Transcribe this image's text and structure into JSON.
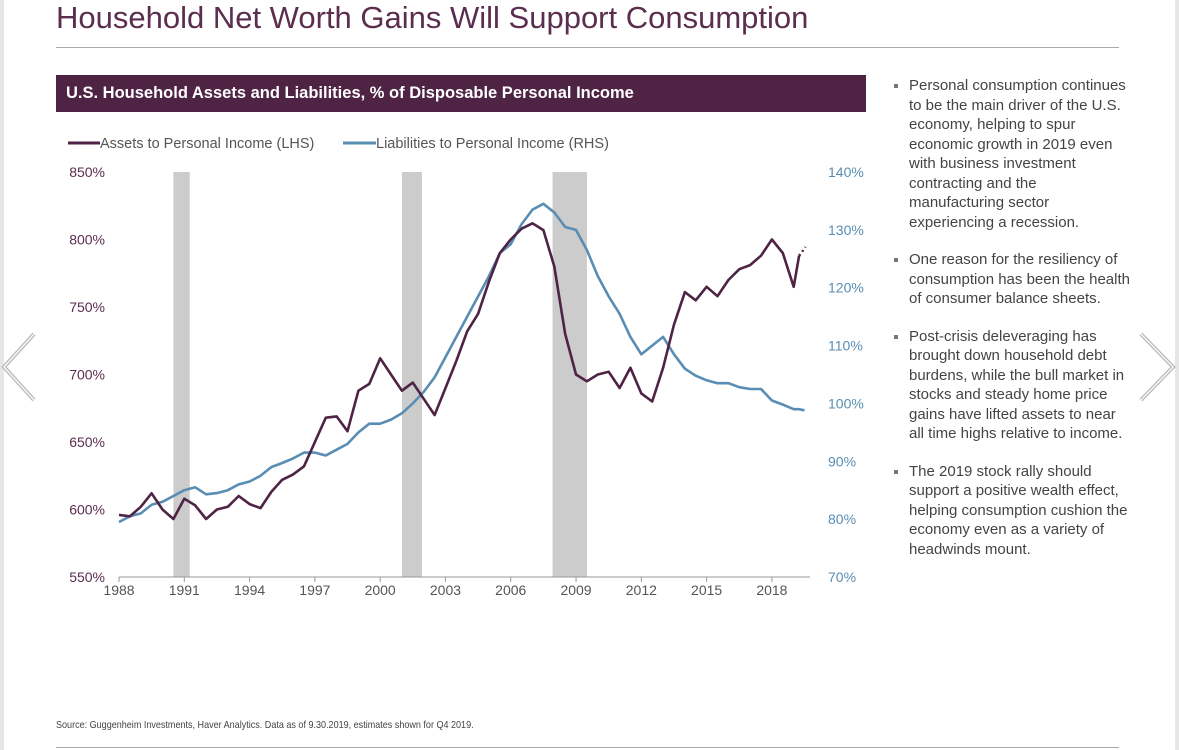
{
  "title": "Household Net Worth Gains Will Support Consumption",
  "colors": {
    "assets": "#4e2344",
    "liabilities": "#5a8db3",
    "recession": "#cccccc",
    "header_bg": "#4e2344",
    "title": "#5b2d4f"
  },
  "bullets": [
    "Personal consumption continues to be the main driver of the U.S. economy, helping to spur economic growth in 2019 even with business investment contracting and the manufacturing sector experiencing a recession.",
    "One reason for the resiliency of consumption has been the health of consumer balance sheets.",
    "Post-crisis deleveraging has brought down household debt burdens, while the bull market in stocks and steady home price gains have lifted assets to near all time highs relative to income.",
    "The 2019 stock rally should support a positive wealth effect, helping consumption cushion the economy even as a variety of headwinds mount."
  ],
  "source": "Source: Guggenheim Investments, Haver Analytics. Data as of 9.30.2019, estimates shown for Q4 2019.",
  "nav": {
    "prev": "chevron-left-icon",
    "next": "chevron-right-icon"
  },
  "chart_data": {
    "type": "line",
    "title": "U.S. Household Assets and Liabilities, % of Disposable Personal Income",
    "x_ticks": [
      1988,
      1991,
      1994,
      1997,
      2000,
      2003,
      2006,
      2009,
      2012,
      2015,
      2018
    ],
    "xlim": [
      1988,
      2019.75
    ],
    "left_axis": {
      "ylim": [
        550,
        850
      ],
      "ticks": [
        "550%",
        "600%",
        "650%",
        "700%",
        "750%",
        "800%",
        "850%"
      ]
    },
    "right_axis": {
      "ylim": [
        70,
        140
      ],
      "ticks": [
        "70%",
        "80%",
        "90%",
        "100%",
        "110%",
        "120%",
        "130%",
        "140%"
      ]
    },
    "legend": "top-left",
    "recessions": [
      [
        1990.5,
        1991.25
      ],
      [
        2001.0,
        2001.92
      ],
      [
        2007.92,
        2009.5
      ]
    ],
    "series": [
      {
        "name": "Assets to Personal Income (LHS)",
        "axis": "left",
        "x": [
          1988,
          1988.5,
          1989,
          1989.5,
          1990,
          1990.5,
          1991,
          1991.5,
          1992,
          1992.5,
          1993,
          1993.5,
          1994,
          1994.5,
          1995,
          1995.5,
          1996,
          1996.5,
          1997,
          1997.5,
          1998,
          1998.5,
          1999,
          1999.5,
          2000,
          2000.5,
          2001,
          2001.5,
          2002,
          2002.5,
          2003,
          2003.5,
          2004,
          2004.5,
          2005,
          2005.5,
          2006,
          2006.5,
          2007,
          2007.5,
          2008,
          2008.5,
          2009,
          2009.5,
          2010,
          2010.5,
          2011,
          2011.5,
          2012,
          2012.5,
          2013,
          2013.5,
          2014,
          2014.5,
          2015,
          2015.5,
          2016,
          2016.5,
          2017,
          2017.5,
          2018,
          2018.5,
          2019,
          2019.25,
          2019.5
        ],
        "y": [
          596,
          595,
          602,
          612,
          600,
          593,
          608,
          603,
          593,
          600,
          602,
          610,
          604,
          601,
          613,
          622,
          626,
          632,
          650,
          668,
          669,
          658,
          688,
          693,
          712,
          700,
          688,
          694,
          682,
          670,
          690,
          710,
          732,
          745,
          769,
          790,
          800,
          808,
          812,
          807,
          780,
          730,
          700,
          695,
          700,
          702,
          690,
          705,
          686,
          680,
          705,
          737,
          761,
          755,
          765,
          758,
          770,
          778,
          781,
          788,
          800,
          790,
          765,
          788,
          787
        ]
      },
      {
        "name": "Liabilities to Personal Income (RHS)",
        "axis": "right",
        "x": [
          1988,
          1988.5,
          1989,
          1989.5,
          1990,
          1990.5,
          1991,
          1991.5,
          1992,
          1992.5,
          1993,
          1993.5,
          1994,
          1994.5,
          1995,
          1995.5,
          1996,
          1996.5,
          1997,
          1997.5,
          1998,
          1998.5,
          1999,
          1999.5,
          2000,
          2000.5,
          2001,
          2001.5,
          2002,
          2002.5,
          2003,
          2003.5,
          2004,
          2004.5,
          2005,
          2005.5,
          2006,
          2006.5,
          2007,
          2007.5,
          2008,
          2008.5,
          2009,
          2009.5,
          2010,
          2010.5,
          2011,
          2011.5,
          2012,
          2012.5,
          2013,
          2013.5,
          2014,
          2014.5,
          2015,
          2015.5,
          2016,
          2016.5,
          2017,
          2017.5,
          2018,
          2018.5,
          2019,
          2019.25,
          2019.5
        ],
        "y": [
          79.5,
          80.5,
          81,
          82.5,
          83,
          84,
          85,
          85.5,
          84.3,
          84.5,
          85,
          86,
          86.5,
          87.5,
          89,
          89.7,
          90.5,
          91.5,
          91.5,
          91,
          92,
          93,
          95,
          96.5,
          96.5,
          97.2,
          98.3,
          100,
          102,
          104.5,
          108,
          111.5,
          115,
          118.5,
          122,
          126,
          127.5,
          131,
          133.5,
          134.5,
          133,
          130.5,
          130,
          126.5,
          122,
          118.5,
          115.5,
          111.5,
          108.5,
          110,
          111.5,
          108.5,
          106,
          104.8,
          104,
          103.5,
          103.5,
          102.8,
          102.5,
          102.5,
          100.5,
          99.8,
          99,
          99,
          98.8
        ]
      }
    ]
  }
}
